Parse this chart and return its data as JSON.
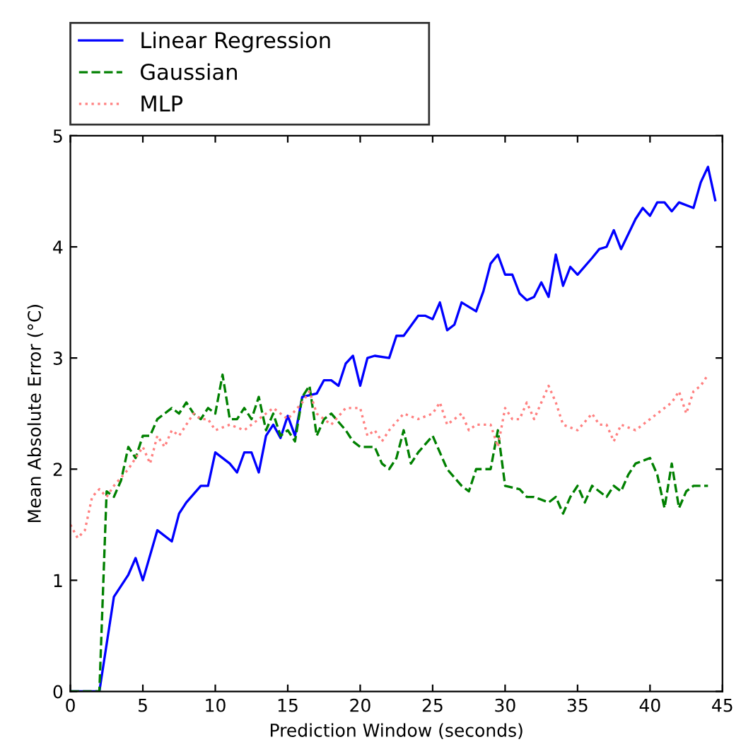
{
  "chart_data": {
    "type": "line",
    "xlabel": "Prediction Window (seconds)",
    "ylabel": "Mean Absolute Error (°C)",
    "xlim": [
      0,
      45
    ],
    "ylim": [
      0,
      5
    ],
    "xticks": [
      0,
      5,
      10,
      15,
      20,
      25,
      30,
      35,
      40,
      45
    ],
    "yticks": [
      0,
      1,
      2,
      3,
      4,
      5
    ],
    "grid": false,
    "legend": "top",
    "series": [
      {
        "name": "Linear Regression",
        "color": "#0000ff",
        "line_style": "solid",
        "x": [
          0,
          1,
          2,
          3,
          4,
          4.5,
          5,
          6,
          7,
          7.5,
          8,
          9,
          9.5,
          10,
          11,
          11.5,
          12,
          12.5,
          13,
          13.5,
          14,
          14.5,
          15,
          15.5,
          16,
          17,
          17.5,
          18,
          18.5,
          19,
          19.5,
          20,
          20.5,
          21,
          22,
          22.5,
          23,
          24,
          24.5,
          25,
          25.5,
          26,
          26.5,
          27,
          28,
          28.5,
          29,
          29.5,
          30,
          30.5,
          31,
          31.5,
          32,
          32.5,
          33,
          33.5,
          34,
          34.5,
          35,
          36,
          36.5,
          37,
          37.5,
          38,
          39,
          39.5,
          40,
          40.5,
          41,
          41.5,
          42,
          43,
          43.5,
          44,
          44.5
        ],
        "values": [
          0,
          0,
          0,
          0.85,
          1.05,
          1.2,
          1.0,
          1.45,
          1.35,
          1.6,
          1.7,
          1.85,
          1.85,
          2.15,
          2.05,
          1.97,
          2.15,
          2.15,
          1.97,
          2.3,
          2.4,
          2.28,
          2.48,
          2.3,
          2.65,
          2.68,
          2.8,
          2.8,
          2.75,
          2.95,
          3.02,
          2.75,
          3.0,
          3.02,
          3.0,
          3.2,
          3.2,
          3.38,
          3.38,
          3.35,
          3.5,
          3.25,
          3.3,
          3.5,
          3.42,
          3.6,
          3.85,
          3.93,
          3.75,
          3.75,
          3.58,
          3.52,
          3.55,
          3.68,
          3.55,
          3.93,
          3.65,
          3.82,
          3.75,
          3.9,
          3.98,
          4.0,
          4.15,
          3.98,
          4.25,
          4.35,
          4.28,
          4.4,
          4.4,
          4.32,
          4.4,
          4.35,
          4.58,
          4.72,
          4.42
        ]
      },
      {
        "name": "Gaussian",
        "color": "#008000",
        "line_style": "dashed",
        "x": [
          0,
          1,
          2,
          2.5,
          3,
          3.5,
          4,
          4.5,
          5,
          5.5,
          6,
          7,
          7.5,
          8,
          8.5,
          9,
          9.5,
          10,
          10.5,
          11,
          11.5,
          12,
          12.5,
          13,
          13.5,
          14,
          14.5,
          15,
          15.5,
          16,
          16.5,
          17,
          17.5,
          18,
          19,
          19.5,
          20,
          21,
          21.5,
          22,
          22.5,
          23,
          23.5,
          24,
          25,
          25.5,
          26,
          27,
          27.5,
          28,
          29,
          29.5,
          30,
          31,
          31.5,
          32,
          33,
          33.5,
          34,
          34.5,
          35,
          35.5,
          36,
          37,
          37.5,
          38,
          38.5,
          39,
          40,
          40.5,
          41,
          41.5,
          42,
          42.5,
          43,
          44
        ],
        "values": [
          0,
          0,
          0,
          1.8,
          1.75,
          1.9,
          2.2,
          2.1,
          2.3,
          2.3,
          2.45,
          2.55,
          2.5,
          2.6,
          2.5,
          2.45,
          2.55,
          2.5,
          2.85,
          2.45,
          2.45,
          2.55,
          2.45,
          2.65,
          2.35,
          2.5,
          2.3,
          2.35,
          2.25,
          2.65,
          2.75,
          2.3,
          2.45,
          2.5,
          2.35,
          2.25,
          2.2,
          2.2,
          2.05,
          2.0,
          2.1,
          2.35,
          2.05,
          2.15,
          2.3,
          2.15,
          2.0,
          1.85,
          1.8,
          2.0,
          2.0,
          2.35,
          1.85,
          1.82,
          1.75,
          1.75,
          1.7,
          1.75,
          1.6,
          1.75,
          1.85,
          1.7,
          1.85,
          1.75,
          1.85,
          1.8,
          1.95,
          2.05,
          2.1,
          1.95,
          1.65,
          2.05,
          1.65,
          1.8,
          1.85,
          1.85
        ]
      },
      {
        "name": "MLP",
        "color": "#ff8080",
        "line_style": "dotted",
        "x": [
          0,
          0.5,
          1,
          1.5,
          2,
          2.5,
          3,
          4,
          4.5,
          5,
          5.5,
          6,
          6.5,
          7,
          7.5,
          8,
          8.5,
          9,
          9.5,
          10,
          11,
          12,
          13,
          14,
          15,
          16,
          16.5,
          17,
          18,
          19,
          20,
          20.5,
          21,
          21.5,
          22,
          23,
          24,
          25,
          25.5,
          26,
          27,
          27.5,
          28,
          29,
          29.5,
          30,
          30.5,
          31,
          31.5,
          32,
          32.5,
          33,
          33.5,
          34,
          35,
          36,
          36.5,
          37,
          37.5,
          38,
          39,
          40,
          40.5,
          41,
          41.5,
          42,
          42.5,
          43,
          43.5,
          44
        ],
        "values": [
          1.5,
          1.38,
          1.45,
          1.75,
          1.82,
          1.75,
          1.85,
          2.0,
          2.1,
          2.2,
          2.05,
          2.3,
          2.2,
          2.35,
          2.3,
          2.4,
          2.5,
          2.45,
          2.45,
          2.35,
          2.4,
          2.35,
          2.45,
          2.55,
          2.45,
          2.6,
          2.7,
          2.5,
          2.4,
          2.55,
          2.55,
          2.3,
          2.35,
          2.25,
          2.35,
          2.5,
          2.45,
          2.5,
          2.6,
          2.4,
          2.5,
          2.35,
          2.4,
          2.4,
          2.2,
          2.55,
          2.45,
          2.45,
          2.6,
          2.45,
          2.6,
          2.75,
          2.6,
          2.4,
          2.35,
          2.5,
          2.4,
          2.4,
          2.25,
          2.4,
          2.35,
          2.45,
          2.5,
          2.55,
          2.6,
          2.7,
          2.5,
          2.7,
          2.75,
          2.85
        ]
      }
    ]
  }
}
